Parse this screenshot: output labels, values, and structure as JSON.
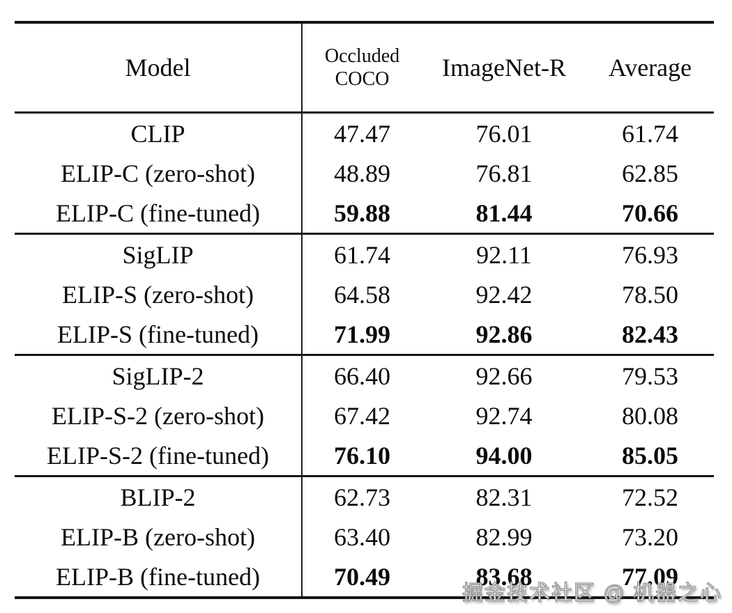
{
  "table": {
    "header": {
      "model": "Model",
      "occluded_line1": "Occluded",
      "occluded_line2": "COCO",
      "imagenet": "ImageNet-R",
      "average": "Average"
    },
    "groups": [
      {
        "rows": [
          {
            "model": "CLIP",
            "occluded": "47.47",
            "imagenet": "76.01",
            "average": "61.74",
            "bold": false
          },
          {
            "model": "ELIP-C (zero-shot)",
            "occluded": "48.89",
            "imagenet": "76.81",
            "average": "62.85",
            "bold": false
          },
          {
            "model": "ELIP-C (fine-tuned)",
            "occluded": "59.88",
            "imagenet": "81.44",
            "average": "70.66",
            "bold": true
          }
        ]
      },
      {
        "rows": [
          {
            "model": "SigLIP",
            "occluded": "61.74",
            "imagenet": "92.11",
            "average": "76.93",
            "bold": false
          },
          {
            "model": "ELIP-S (zero-shot)",
            "occluded": "64.58",
            "imagenet": "92.42",
            "average": "78.50",
            "bold": false
          },
          {
            "model": "ELIP-S (fine-tuned)",
            "occluded": "71.99",
            "imagenet": "92.86",
            "average": "82.43",
            "bold": true
          }
        ]
      },
      {
        "rows": [
          {
            "model": "SigLIP-2",
            "occluded": "66.40",
            "imagenet": "92.66",
            "average": "79.53",
            "bold": false
          },
          {
            "model": "ELIP-S-2 (zero-shot)",
            "occluded": "67.42",
            "imagenet": "92.74",
            "average": "80.08",
            "bold": false
          },
          {
            "model": "ELIP-S-2 (fine-tuned)",
            "occluded": "76.10",
            "imagenet": "94.00",
            "average": "85.05",
            "bold": true
          }
        ]
      },
      {
        "rows": [
          {
            "model": "BLIP-2",
            "occluded": "62.73",
            "imagenet": "82.31",
            "average": "72.52",
            "bold": false
          },
          {
            "model": "ELIP-B (zero-shot)",
            "occluded": "63.40",
            "imagenet": "82.99",
            "average": "73.20",
            "bold": false
          },
          {
            "model": "ELIP-B (fine-tuned)",
            "occluded": "70.49",
            "imagenet": "83.68",
            "average": "77.09",
            "bold": true
          }
        ]
      }
    ]
  },
  "watermark": {
    "text": "掘金技术社区 @ 机器之心",
    "fill_color": "#fdfdfd",
    "outline_color": "#8f8f8f"
  }
}
